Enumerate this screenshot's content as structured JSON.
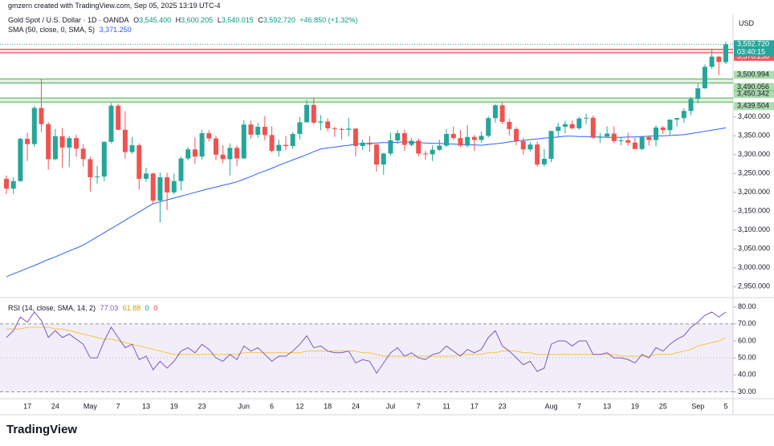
{
  "header": {
    "credit": "gmzern created with TradingView.com, Sep 05, 2025 13:19 UTC-4",
    "symbol": "Gold Spot / U.S. Dollar · 1D · OANDA",
    "ohlc": [
      [
        "O",
        "3,545.400"
      ],
      [
        "H",
        "3,600.205"
      ],
      [
        "L",
        "3,540.015"
      ],
      [
        "C",
        "3,592.720"
      ]
    ],
    "change": "+46.850 (+1.32%)",
    "sma": {
      "name": "SMA (50, close, 0, SMA, 5)",
      "value": "3,371.250"
    },
    "rsi": {
      "name": "RSI (14, close, SMA, 14, 2)",
      "values": [
        "77.03",
        "61.88",
        "0",
        "0"
      ]
    },
    "currency": "USD",
    "logo": "TradingView"
  },
  "chart_data": [
    {
      "type": "candlestick",
      "categories": [
        null,
        null,
        null,
        "17",
        null,
        null,
        null,
        "24",
        null,
        null,
        null,
        null,
        "May",
        null,
        null,
        null,
        "7",
        null,
        null,
        null,
        "13",
        null,
        null,
        null,
        "19",
        null,
        null,
        null,
        "23",
        null,
        null,
        null,
        null,
        null,
        "Jun",
        null,
        null,
        null,
        "6",
        null,
        null,
        null,
        "12",
        null,
        null,
        null,
        "18",
        null,
        null,
        null,
        "24",
        null,
        null,
        null,
        null,
        "Jul",
        null,
        null,
        null,
        "7",
        null,
        null,
        null,
        "11",
        null,
        null,
        null,
        "17",
        null,
        null,
        null,
        "23",
        null,
        null,
        null,
        null,
        null,
        null,
        "Aug",
        null,
        null,
        null,
        "7",
        null,
        null,
        null,
        "13",
        null,
        null,
        null,
        "19",
        null,
        null,
        null,
        "25",
        null,
        null,
        null,
        null,
        "Sep",
        null,
        null,
        null,
        "5"
      ],
      "open": [
        3236,
        3210,
        3230,
        3342,
        3328,
        3424,
        3381,
        3288,
        3349,
        3319,
        3344,
        3316,
        3288,
        3240,
        3242,
        3334,
        3430,
        3366,
        3307,
        3325,
        3236,
        3250,
        3178,
        3240,
        3200,
        3230,
        3290,
        3314,
        3295,
        3357,
        3343,
        3300,
        3288,
        3318,
        3290,
        3380,
        3353,
        3374,
        3352,
        3310,
        3326,
        3323,
        3355,
        3386,
        3432,
        3385,
        3388,
        3370,
        3368,
        3366,
        3369,
        3323,
        3332,
        3327,
        3274,
        3303,
        3338,
        3357,
        3326,
        3337,
        3303,
        3301,
        3313,
        3324,
        3355,
        3344,
        3324,
        3347,
        3339,
        3350,
        3397,
        3431,
        3387,
        3368,
        3336,
        3314,
        3327,
        3274,
        3289,
        3363,
        3374,
        3381,
        3370,
        3396,
        3398,
        3345,
        3348,
        3356,
        3336,
        3338,
        3332,
        3315,
        3347,
        3339,
        3372,
        3365,
        3393,
        3397,
        3416,
        3448,
        3476,
        3533,
        3560,
        3545.4
      ],
      "high": [
        3245,
        3240,
        3345,
        3358,
        3430,
        3500,
        3386,
        3368,
        3370,
        3350,
        3353,
        3328,
        3295,
        3270,
        3335,
        3437,
        3435,
        3415,
        3347,
        3330,
        3265,
        3252,
        3253,
        3252,
        3250,
        3295,
        3320,
        3346,
        3366,
        3365,
        3350,
        3325,
        3330,
        3325,
        3392,
        3390,
        3385,
        3403,
        3375,
        3340,
        3350,
        3360,
        3400,
        3446,
        3452,
        3405,
        3397,
        3374,
        3372,
        3398,
        3371,
        3340,
        3350,
        3329,
        3305,
        3358,
        3365,
        3366,
        3345,
        3343,
        3310,
        3325,
        3340,
        3368,
        3375,
        3366,
        3378,
        3352,
        3362,
        3402,
        3434,
        3438,
        3395,
        3373,
        3345,
        3333,
        3334,
        3315,
        3363,
        3385,
        3390,
        3390,
        3400,
        3409,
        3404,
        3358,
        3375,
        3375,
        3345,
        3358,
        3345,
        3350,
        3351,
        3378,
        3376,
        3393,
        3398,
        3423,
        3453,
        3489,
        3539,
        3578,
        3562,
        3600.205
      ],
      "low": [
        3195,
        3195,
        3228,
        3283,
        3320,
        3360,
        3260,
        3285,
        3266,
        3267,
        3294,
        3268,
        3202,
        3223,
        3230,
        3330,
        3365,
        3289,
        3302,
        3207,
        3228,
        3170,
        3120,
        3153,
        3195,
        3205,
        3285,
        3276,
        3287,
        3335,
        3285,
        3277,
        3245,
        3270,
        3289,
        3343,
        3345,
        3338,
        3306,
        3295,
        3312,
        3315,
        3341,
        3385,
        3380,
        3365,
        3362,
        3347,
        3340,
        3348,
        3295,
        3312,
        3308,
        3255,
        3247,
        3298,
        3328,
        3310,
        3322,
        3295,
        3287,
        3283,
        3310,
        3320,
        3340,
        3320,
        3319,
        3310,
        3332,
        3345,
        3385,
        3381,
        3351,
        3325,
        3300,
        3308,
        3268,
        3268,
        3280,
        3346,
        3356,
        3367,
        3366,
        3381,
        3342,
        3331,
        3345,
        3330,
        3325,
        3323,
        3315,
        3312,
        3324,
        3322,
        3355,
        3351,
        3375,
        3385,
        3405,
        3436,
        3475,
        3528,
        3511,
        3540.015
      ],
      "close": [
        3210,
        3230,
        3342,
        3328,
        3424,
        3381,
        3288,
        3349,
        3319,
        3344,
        3316,
        3288,
        3240,
        3242,
        3334,
        3430,
        3366,
        3307,
        3325,
        3236,
        3250,
        3178,
        3240,
        3200,
        3230,
        3290,
        3314,
        3295,
        3357,
        3343,
        3300,
        3288,
        3318,
        3290,
        3380,
        3353,
        3374,
        3352,
        3310,
        3326,
        3323,
        3355,
        3386,
        3432,
        3385,
        3388,
        3370,
        3368,
        3366,
        3369,
        3323,
        3332,
        3327,
        3274,
        3303,
        3338,
        3357,
        3326,
        3337,
        3303,
        3301,
        3313,
        3324,
        3355,
        3344,
        3324,
        3347,
        3339,
        3350,
        3397,
        3431,
        3387,
        3368,
        3336,
        3314,
        3327,
        3274,
        3289,
        3363,
        3374,
        3381,
        3370,
        3396,
        3398,
        3345,
        3348,
        3356,
        3336,
        3338,
        3332,
        3315,
        3347,
        3339,
        3372,
        3365,
        3393,
        3397,
        3416,
        3448,
        3476,
        3533,
        3560,
        3545.87,
        3592.72
      ],
      "up_color": "#26a69a",
      "down_color": "#ef5350",
      "sma": {
        "color": "#2962ff",
        "values": [
          2976,
          2984,
          2991,
          2999,
          3006,
          3014,
          3022,
          3029,
          3037,
          3045,
          3052,
          3060,
          3071,
          3082,
          3093,
          3104,
          3115,
          3126,
          3137,
          3148,
          3159,
          3170,
          3175,
          3180,
          3185,
          3190,
          3195,
          3200,
          3205,
          3210,
          3214,
          3219,
          3223,
          3228,
          3235,
          3242,
          3250,
          3257,
          3264,
          3272,
          3279,
          3286,
          3293,
          3300,
          3308,
          3315,
          3318,
          3320,
          3323,
          3325,
          3328,
          3329,
          3330,
          3331,
          3332,
          3332,
          3333,
          3334,
          3333,
          3332,
          3331,
          3330,
          3330,
          3329,
          3328,
          3327,
          3326,
          3326,
          3325,
          3327,
          3329,
          3331,
          3334,
          3336,
          3338,
          3340,
          3342,
          3344,
          3345,
          3347,
          3349,
          3349,
          3348,
          3348,
          3347,
          3347,
          3346,
          3346,
          3346,
          3347,
          3347,
          3348,
          3349,
          3350,
          3350,
          3351,
          3352,
          3353,
          3356,
          3359,
          3362,
          3365,
          3368,
          3371.25
        ]
      },
      "zones": [
        {
          "color": "#f23645",
          "values": [
            3579.674,
            3570.258
          ],
          "value_labels": [
            "3,579.674",
            "3,570.258"
          ]
        },
        {
          "color": "#4caf50",
          "values": [
            3500.994,
            3490.056
          ],
          "value_labels": [
            "3,500.994",
            "3,490.056"
          ]
        },
        {
          "color": "#4caf50",
          "values": [
            3450.342,
            3439.504
          ],
          "value_labels": [
            "3,450.342",
            "3,439.504"
          ]
        }
      ],
      "last_label": "3,592.720",
      "countdown": "03:40:15",
      "ylim": [
        2923,
        3672
      ],
      "yticks": [
        {
          "value": 3400,
          "label": "3,400.000"
        },
        {
          "value": 3350,
          "label": "3,350.000"
        },
        {
          "value": 3300,
          "label": "3,300.000"
        },
        {
          "value": 3250,
          "label": "3,250.000"
        },
        {
          "value": 3200,
          "label": "3,200.000"
        },
        {
          "value": 3150,
          "label": "3,150.000"
        },
        {
          "value": 3100,
          "label": "3,100.000"
        },
        {
          "value": 3050,
          "label": "3,050.000"
        },
        {
          "value": 3000,
          "label": "3,000.000"
        },
        {
          "value": 2950,
          "label": "2,950.000"
        }
      ]
    },
    {
      "type": "line",
      "series": [
        {
          "color": "#7e57c2",
          "values": [
            62,
            66,
            74,
            71,
            77,
            72,
            62,
            66,
            62,
            64,
            61,
            58,
            50,
            50,
            60,
            68,
            62,
            56,
            58,
            49,
            51,
            43,
            48,
            44,
            48,
            54,
            56,
            53,
            58,
            55,
            50,
            48,
            52,
            49,
            57,
            54,
            56,
            52,
            48,
            51,
            51,
            54,
            58,
            63,
            56,
            57,
            54,
            53,
            53,
            54,
            47,
            49,
            48,
            41,
            47,
            53,
            56,
            51,
            53,
            50,
            49,
            52,
            53,
            57,
            54,
            51,
            55,
            53,
            55,
            62,
            66,
            57,
            54,
            50,
            46,
            48,
            42,
            44,
            58,
            60,
            60,
            57,
            60,
            60,
            52,
            52,
            53,
            50,
            50,
            49,
            47,
            52,
            50,
            56,
            54,
            58,
            61,
            63,
            68,
            71,
            75,
            77,
            74,
            77.03
          ]
        },
        {
          "color": "#f5c542",
          "values": [
            67,
            67,
            67,
            68,
            68,
            68,
            68,
            67,
            67,
            66,
            65,
            64,
            63,
            62,
            61,
            61,
            60,
            59,
            58,
            57,
            56,
            55,
            54,
            53,
            52,
            52,
            52,
            52,
            52,
            52,
            52,
            52,
            52,
            52,
            53,
            53,
            53,
            53,
            53,
            53,
            53,
            53,
            53,
            54,
            54,
            54,
            54,
            54,
            54,
            54,
            54,
            53,
            53,
            52,
            51,
            51,
            51,
            51,
            51,
            51,
            51,
            51,
            51,
            51,
            51,
            52,
            52,
            52,
            52,
            53,
            53,
            54,
            54,
            54,
            53,
            53,
            52,
            52,
            52,
            52,
            52,
            52,
            52,
            52,
            52,
            52,
            52,
            52,
            51,
            51,
            51,
            51,
            51,
            52,
            52,
            52,
            53,
            54,
            55,
            57,
            58,
            59,
            60,
            61.88
          ]
        }
      ],
      "band": [
        70,
        30
      ],
      "band_color": "rgba(126,87,194,0.1)",
      "levels": [
        70,
        50,
        30
      ],
      "ylim": [
        26,
        85
      ],
      "yticks": [
        {
          "value": 80,
          "label": "80.00"
        },
        {
          "value": 70,
          "label": "70.00"
        },
        {
          "value": 60,
          "label": "60.00"
        },
        {
          "value": 50,
          "label": "50.00"
        },
        {
          "value": 40,
          "label": "40.00"
        },
        {
          "value": 30,
          "label": "30.00"
        }
      ]
    }
  ]
}
